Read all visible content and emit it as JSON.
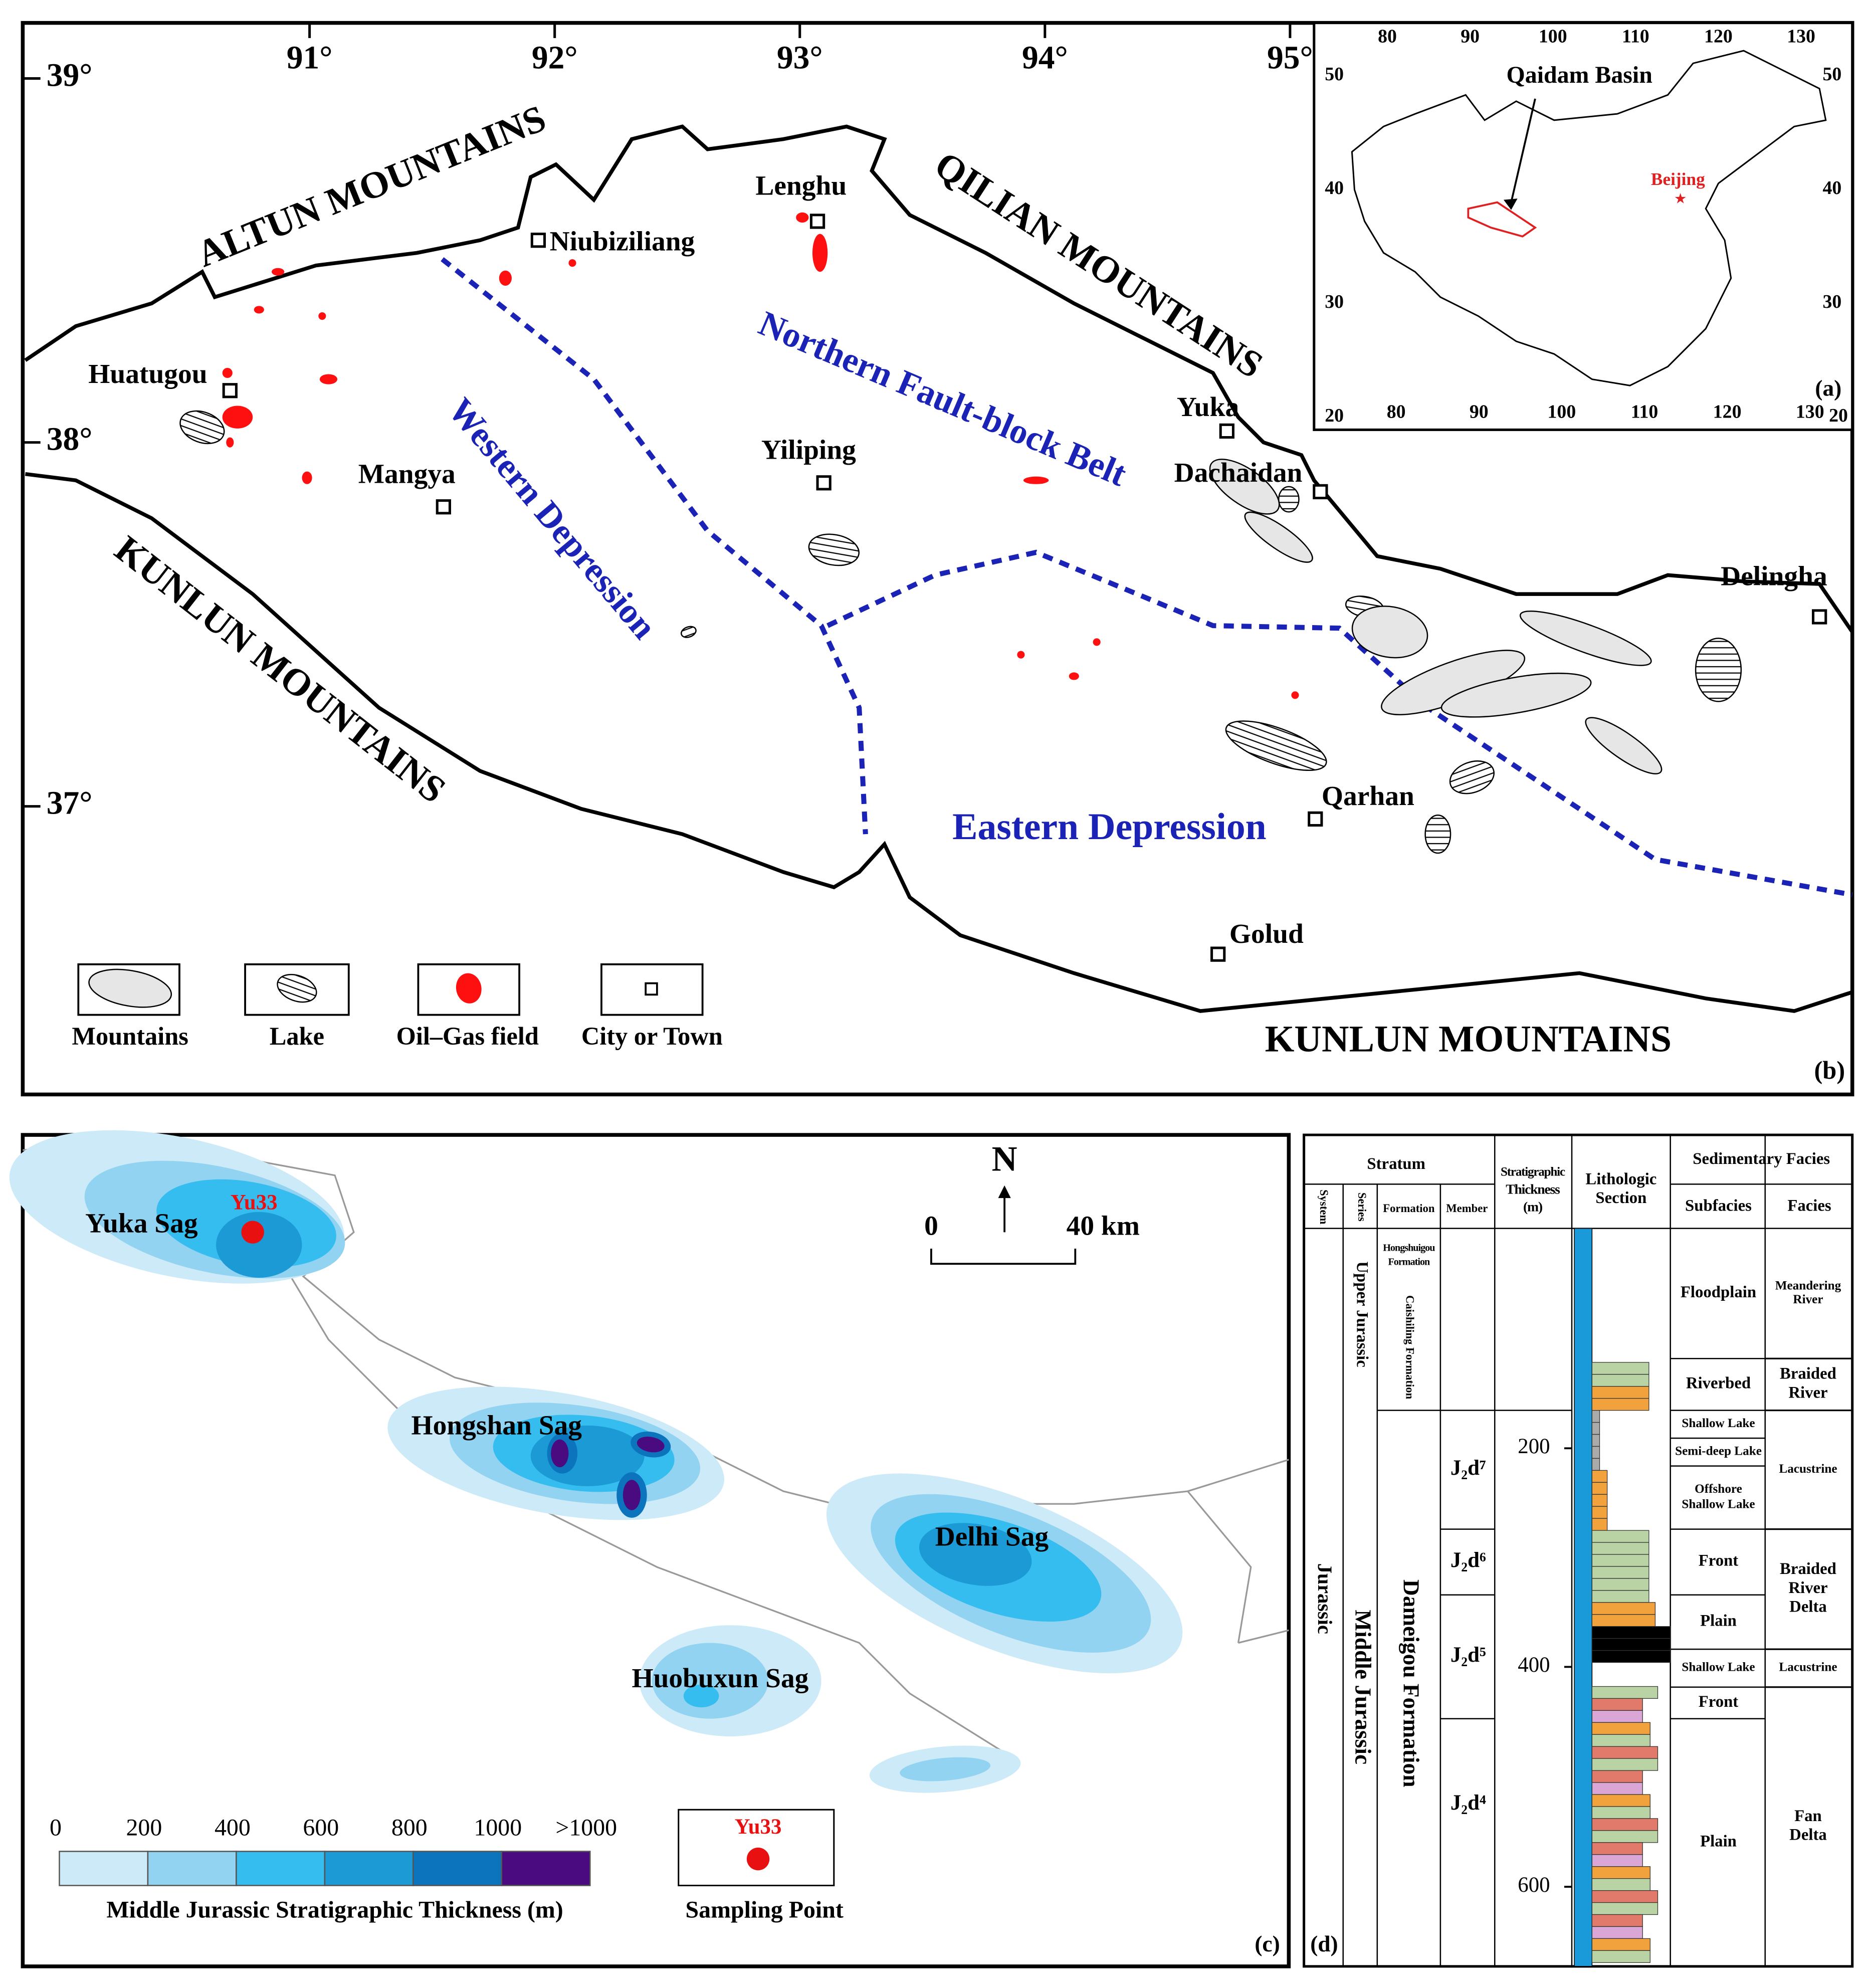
{
  "panel_b": {
    "label": "(b)",
    "longitude_labels": [
      "91°",
      "92°",
      "93°",
      "94°",
      "95°"
    ],
    "latitude_labels": [
      "39°",
      "38°",
      "37°"
    ],
    "regions": [
      "ALTUN MOUNTAINS",
      "QILIAN MOUNTAINS",
      "KUNLUN MOUNTAINS",
      "KUNLUN MOUNTAINS"
    ],
    "units": [
      "Western Depression",
      "Northern Fault-block Belt",
      "Eastern Depression"
    ],
    "towns": [
      "Niubiziliang",
      "Lenghu",
      "Huatugou",
      "Mangya",
      "Yiliping",
      "Yuka",
      "Dachaidan",
      "Delingha",
      "Qarhan",
      "Golud"
    ],
    "legend": [
      "Mountains",
      "Lake",
      "Oil–Gas field",
      "City or Town"
    ]
  },
  "panel_a": {
    "label": "(a)",
    "basin": "Qaidam Basin",
    "city": "Beijing",
    "top_ticks": [
      "80",
      "90",
      "100",
      "110",
      "120",
      "130"
    ],
    "bottom_ticks": [
      "80",
      "90",
      "100",
      "110",
      "120",
      "130"
    ],
    "left_ticks": [
      "50",
      "40",
      "30",
      "20"
    ],
    "right_ticks": [
      "50",
      "40",
      "30",
      "20"
    ]
  },
  "panel_c": {
    "label": "(c)",
    "sags": [
      "Yuka Sag",
      "Hongshan Sag",
      "Delhi Sag",
      "Huobuxun Sag"
    ],
    "well": "Yu33",
    "north": "N",
    "scale": [
      "0",
      "40 km"
    ],
    "legend_ticks": [
      "0",
      "200",
      "400",
      "600",
      "800",
      "1000",
      ">1000"
    ],
    "legend_colors": [
      "#cdeaf8",
      "#92d3f2",
      "#36bdf0",
      "#1b9ad6",
      "#0b74bd",
      "#4a0a80"
    ],
    "legend_title": "Middle Jurassic Stratigraphic Thickness (m)",
    "sampling_label": "Yu33",
    "sampling_title": "Sampling Point"
  },
  "panel_d": {
    "label": "(d)",
    "stratum": "Stratum",
    "columns": [
      "System",
      "Series",
      "Formation",
      "Member"
    ],
    "thickness_header": [
      "Stratigraphic",
      "Thickness",
      "(m)"
    ],
    "lithology_header": [
      "Lithologic",
      "Section"
    ],
    "facies_header": "Sedimentary Facies",
    "subfacies_header": "Subfacies",
    "facies_col_header": "Facies",
    "system": "Jurassic",
    "series": [
      "Upper Jurassic",
      "Middle Jurassic"
    ],
    "formations": [
      [
        "Hongshuigou",
        "Formation"
      ],
      [
        "Caishiling Formation"
      ],
      [
        "Dameigou Formation"
      ]
    ],
    "members": [
      "J₂d⁷",
      "J₂d⁶",
      "J₂d⁵",
      "J₂d⁴"
    ],
    "thickness_ticks": [
      "200",
      "400",
      "600"
    ],
    "subfacies": [
      [
        "Floodplain"
      ],
      [
        "Riverbed"
      ],
      [
        "Shallow Lake"
      ],
      [
        "Semi-deep Lake"
      ],
      [
        "Offshore",
        "Shallow Lake"
      ],
      [
        "Front"
      ],
      [
        "Plain"
      ],
      [
        "Shallow Lake"
      ],
      [
        "Front"
      ],
      [
        "Plain"
      ]
    ],
    "facies": [
      [
        "Meandering",
        "River"
      ],
      [
        "Braided",
        "River"
      ],
      [
        "Lacustrine"
      ],
      [
        "Braided",
        "River",
        "Delta"
      ],
      [
        "Lacustrine"
      ],
      [
        "Fan",
        "Delta"
      ]
    ]
  }
}
